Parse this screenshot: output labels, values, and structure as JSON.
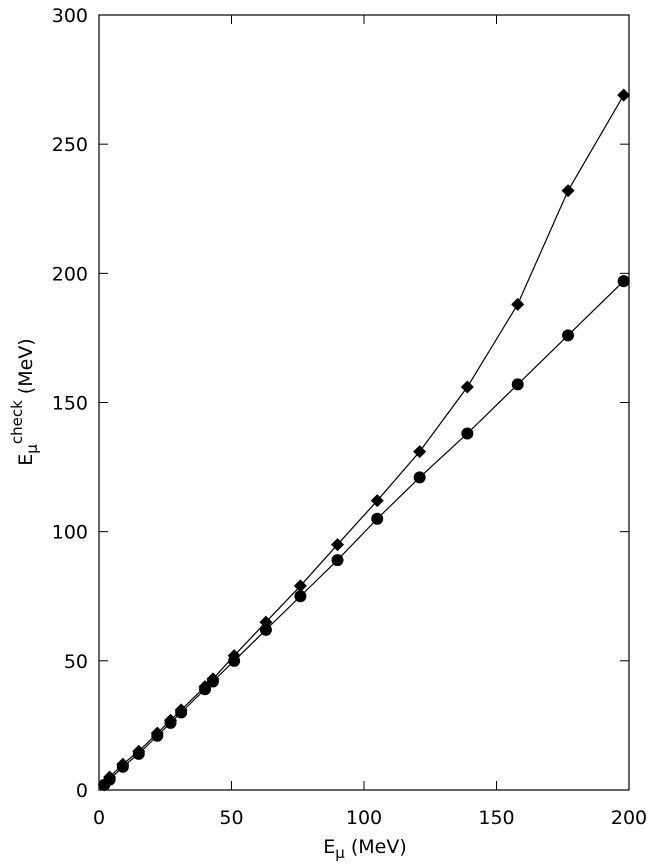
{
  "chart_data": {
    "type": "line",
    "x_label": [
      "E",
      "μ",
      " (MeV)"
    ],
    "y_label": [
      "E",
      "μ",
      "check",
      " (MeV)"
    ],
    "x": [
      2,
      4,
      9,
      15,
      22,
      27,
      31,
      40,
      43,
      51,
      63,
      76,
      90,
      105,
      121,
      139,
      158,
      177,
      198
    ],
    "series": [
      {
        "marker": "diamond",
        "color": "#000000",
        "values": [
          2,
          5,
          10,
          15,
          22,
          27,
          31,
          40,
          43,
          52,
          65,
          79,
          95,
          112,
          131,
          156,
          188,
          232,
          269
        ]
      },
      {
        "marker": "circle",
        "color": "#000000",
        "values": [
          2,
          4,
          9,
          14,
          21,
          26,
          30,
          39,
          42,
          50,
          62,
          75,
          89,
          105,
          121,
          138,
          157,
          176,
          197
        ]
      }
    ],
    "xlim": [
      0,
      200
    ],
    "xticks": [
      0,
      50,
      100,
      150,
      200
    ],
    "ylim": [
      0,
      300
    ],
    "yticks": [
      0,
      50,
      100,
      150,
      200,
      250,
      300
    ],
    "grid": false,
    "mirror_ticks": true
  }
}
